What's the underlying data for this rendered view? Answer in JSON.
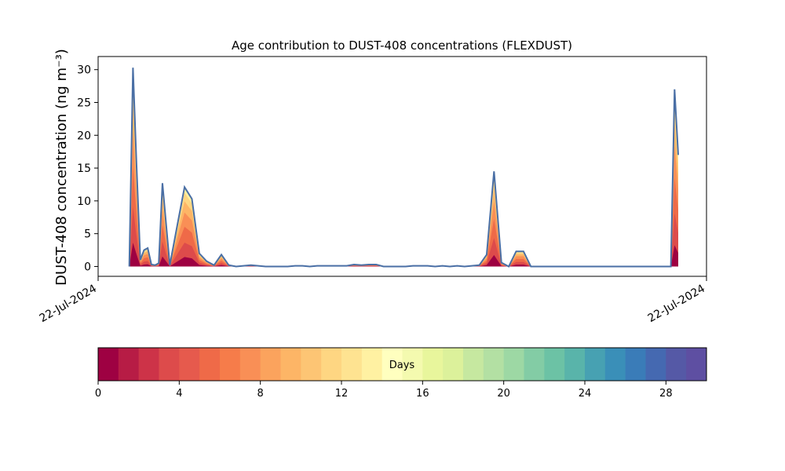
{
  "chart_data": {
    "type": "area",
    "title": "Age contribution to DUST-408 concentrations (FLEXDUST)",
    "ylabel": "DUST-408 concentration (ng m⁻³)",
    "xlabel": "",
    "x_tick_labels": [
      "22-Jul-2024",
      "22-Jul-2024"
    ],
    "ylim": [
      -1.5,
      32
    ],
    "y_ticks": [
      0,
      5,
      10,
      15,
      20,
      25,
      30
    ],
    "x": [
      0.05,
      0.1,
      0.15,
      0.2,
      0.25,
      0.3,
      0.35,
      0.4,
      0.45,
      0.5,
      0.6,
      0.7,
      0.8,
      0.9,
      1.0,
      1.1,
      1.2,
      1.3,
      1.4,
      1.5,
      1.6,
      1.7,
      1.8,
      1.9,
      2.0,
      2.1,
      2.2,
      2.3,
      2.4,
      2.5,
      2.6,
      2.7,
      2.8,
      2.9,
      3.0,
      3.1,
      3.2,
      3.3,
      3.4,
      3.5,
      3.6,
      3.7,
      3.8,
      3.9,
      4.0,
      4.1,
      4.2,
      4.3,
      4.4,
      4.5,
      4.6,
      4.7,
      4.8,
      4.9,
      5.0,
      5.1,
      5.2,
      5.3,
      5.4,
      5.5,
      5.6,
      5.7,
      5.8,
      5.9,
      6.0,
      6.1,
      6.2,
      6.3,
      6.4,
      6.5,
      6.6,
      6.7,
      6.8,
      6.9,
      7.0,
      7.1,
      7.2,
      7.25,
      7.3,
      7.35,
      7.4,
      7.45,
      7.5
    ],
    "total": [
      0,
      30.3,
      15,
      1,
      2.5,
      2.8,
      0.3,
      0.2,
      0.5,
      12.7,
      0.2,
      6.2,
      12.1,
      10.3,
      2.0,
      0.8,
      0.2,
      1.8,
      0.2,
      0,
      0.1,
      0.2,
      0.1,
      0,
      0,
      0,
      0,
      0.1,
      0.1,
      0,
      0.1,
      0.1,
      0.1,
      0.1,
      0.1,
      0.3,
      0.2,
      0.3,
      0.3,
      0,
      0,
      0,
      0,
      0.1,
      0.1,
      0.1,
      0,
      0.1,
      0,
      0.1,
      0,
      0.1,
      0.2,
      1.8,
      14.5,
      0.6,
      0,
      2.3,
      2.3,
      0,
      0,
      0,
      0,
      0,
      0,
      0,
      0,
      0,
      0,
      0,
      0,
      0,
      0,
      0,
      0,
      0,
      0,
      0,
      0,
      0,
      0,
      27,
      17
    ],
    "series_colormap": "Spectral (30 bins, 0–30 days)",
    "colorbar": {
      "label": "Days",
      "ticks": [
        0,
        4,
        8,
        12,
        16,
        20,
        24,
        28
      ],
      "range": [
        0,
        30
      ],
      "colors": [
        "#9e0142",
        "#b71c45",
        "#cd3348",
        "#dd4b4b",
        "#e65a4d",
        "#ef6a48",
        "#f67c4a",
        "#f98f56",
        "#fba35d",
        "#fdb566",
        "#fdc574",
        "#fed682",
        "#fee391",
        "#fff1a2",
        "#ffffbf",
        "#f4faaf",
        "#e8f69c",
        "#dcf19b",
        "#c6e8a0",
        "#b3e0a3",
        "#9dd8a4",
        "#83cca5",
        "#6cc2a5",
        "#59b4aa",
        "#47a1b2",
        "#3a8fb8",
        "#3a7cb8",
        "#4569b1",
        "#5559a6",
        "#5e4fa2"
      ]
    }
  }
}
